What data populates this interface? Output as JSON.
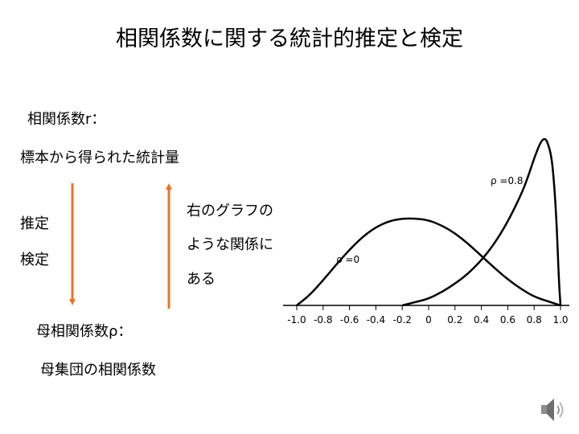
{
  "slide": {
    "title": "相関係数に関する統計的推定と検定",
    "sample_label": "相関係数r：",
    "sample_desc": "標本から得られた統計量",
    "estimate_label": "推定",
    "test_label": "検定",
    "relation_note": [
      "右のグラフの",
      "ような関係に",
      "ある"
    ],
    "population_label": "母相関係数ρ：",
    "population_desc": "母集団の相関係数"
  },
  "colors": {
    "arrow": "#E87722",
    "curve": "#000000",
    "text": "#000000"
  },
  "icons": {
    "audio": "speaker-icon"
  },
  "chart_data": {
    "type": "line",
    "title": "",
    "xlabel": "",
    "ylabel": "",
    "xlim": [
      -1.0,
      1.0
    ],
    "x_ticks": [
      "-1.0",
      "-0.8",
      "-0.6",
      "-0.4",
      "-0.2",
      "0",
      "0.2",
      "0.4",
      "0.6",
      "0.8",
      "1.0"
    ],
    "grid": false,
    "series": [
      {
        "name": "ρ =0",
        "x": [
          -1.0,
          -0.9,
          -0.8,
          -0.7,
          -0.6,
          -0.5,
          -0.4,
          -0.3,
          -0.2,
          -0.1,
          0.0,
          0.1,
          0.2,
          0.3,
          0.4,
          0.5,
          0.6,
          0.7,
          0.8,
          0.9,
          1.0
        ],
        "y": [
          0.0,
          0.12,
          0.29,
          0.47,
          0.64,
          0.79,
          0.9,
          0.97,
          1.0,
          1.0,
          0.98,
          0.92,
          0.83,
          0.71,
          0.57,
          0.43,
          0.3,
          0.19,
          0.1,
          0.05,
          0.0
        ]
      },
      {
        "name": "ρ =0.8",
        "x": [
          -0.2,
          -0.1,
          0.0,
          0.1,
          0.2,
          0.3,
          0.4,
          0.5,
          0.6,
          0.7,
          0.75,
          0.8,
          0.85,
          0.88,
          0.9,
          0.93,
          0.95,
          0.97,
          0.98,
          0.99,
          1.0
        ],
        "y": [
          0.0,
          0.02,
          0.04,
          0.08,
          0.13,
          0.19,
          0.27,
          0.37,
          0.5,
          0.66,
          0.76,
          0.88,
          0.98,
          1.0,
          0.98,
          0.9,
          0.75,
          0.5,
          0.3,
          0.12,
          0.0
        ]
      }
    ]
  }
}
